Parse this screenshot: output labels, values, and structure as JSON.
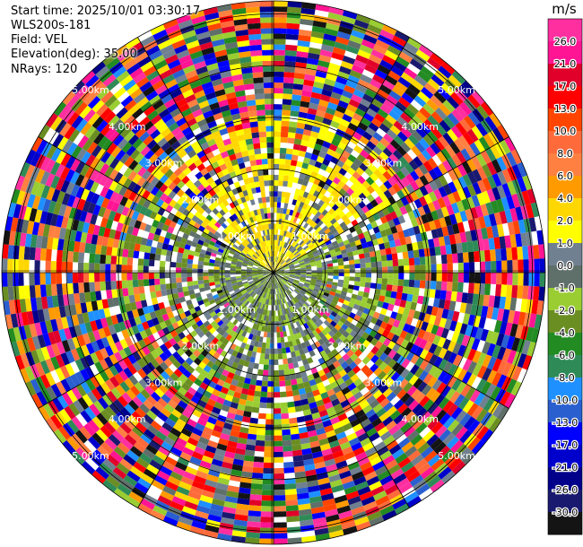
{
  "header": {
    "start_time": "Start time: 2025/10/01 03:30:17",
    "instrument": "WLS200s-181",
    "field": "Field: VEL",
    "elevation": "Elevation(deg): 35.00",
    "nrays": "NRays: 120"
  },
  "chart_data": {
    "type": "heatmap",
    "projection": "polar-ppi",
    "field": "VEL",
    "unit": "m/s",
    "nrays": 120,
    "elevation_deg": 35.0,
    "range_rings_km": [
      1.0,
      2.0,
      3.0,
      4.0,
      5.0
    ],
    "range_ring_labels": [
      "1.00km",
      "2.00km",
      "3.00km",
      "4.00km",
      "5.00km"
    ],
    "max_range_km": 5.25,
    "azimuth_spokes_deg": [
      0,
      30,
      60,
      90,
      120,
      150,
      180,
      210,
      240,
      270,
      300,
      330
    ],
    "grid": true,
    "colorbar": {
      "title": "m/s",
      "tick_labels": [
        "26.0",
        "21.0",
        "17.0",
        "13.0",
        "10.0",
        "8.0",
        "6.0",
        "4.0",
        "2.0",
        "1.0",
        "0.0",
        "-1.0",
        "-2.0",
        "-4.0",
        "-6.0",
        "-8.0",
        "-10.0",
        "-13.0",
        "-17.0",
        "-21.0",
        "-26.0",
        "-30.0"
      ],
      "colors": [
        "#ff2fa0",
        "#ff1493",
        "#e0002a",
        "#ff0000",
        "#ff4500",
        "#ff6a3a",
        "#ff8040",
        "#ff9a00",
        "#ffd700",
        "#ffff00",
        "#708090",
        "#5f6f6a",
        "#9acd32",
        "#6b8e23",
        "#228b22",
        "#2e8b57",
        "#1e90ff",
        "#2a5fd0",
        "#0000ff",
        "#0000cd",
        "#00008b",
        "#191970",
        "#141414"
      ]
    }
  }
}
